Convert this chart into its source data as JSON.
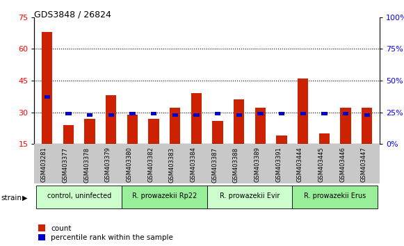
{
  "title": "GDS3848 / 26824",
  "samples": [
    "GSM403281",
    "GSM403377",
    "GSM403378",
    "GSM403379",
    "GSM403380",
    "GSM403382",
    "GSM403383",
    "GSM403384",
    "GSM403387",
    "GSM403388",
    "GSM403389",
    "GSM403391",
    "GSM403444",
    "GSM403445",
    "GSM403446",
    "GSM403447"
  ],
  "red_counts": [
    68,
    24,
    27,
    38,
    29,
    27,
    32,
    39,
    26,
    36,
    32,
    19,
    46,
    20,
    32,
    32
  ],
  "blue_pct": [
    37,
    24,
    23,
    23,
    24,
    24,
    23,
    23,
    24,
    23,
    24,
    24,
    24,
    24,
    24,
    23
  ],
  "bar_color_red": "#cc2200",
  "bar_color_blue": "#0000cc",
  "ylim_left": [
    15,
    75
  ],
  "ylim_right": [
    0,
    100
  ],
  "yticks_left": [
    15,
    30,
    45,
    60,
    75
  ],
  "yticks_right": [
    0,
    25,
    50,
    75,
    100
  ],
  "hlines": [
    30,
    45,
    60
  ],
  "groups": [
    {
      "label": "control, uninfected",
      "start": 0,
      "end": 3,
      "color": "#ccffcc"
    },
    {
      "label": "R. prowazekii Rp22",
      "start": 4,
      "end": 7,
      "color": "#99ee99"
    },
    {
      "label": "R. prowazekii Evir",
      "start": 8,
      "end": 11,
      "color": "#ccffcc"
    },
    {
      "label": "R. prowazekii Erus",
      "start": 12,
      "end": 15,
      "color": "#99ee99"
    }
  ],
  "legend_count": "count",
  "legend_pct": "percentile rank within the sample",
  "strain_label": "strain"
}
